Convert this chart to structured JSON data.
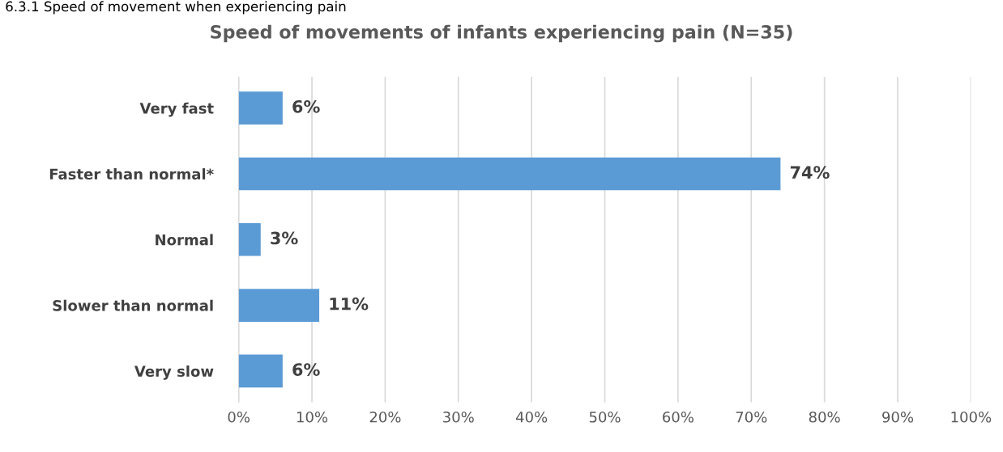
{
  "chart_data": {
    "type": "bar",
    "orientation": "horizontal",
    "title": "Speed of movements of infants experiencing pain (N=35)",
    "annotations": [
      "6.3.1 Speed of movement when experiencing pain"
    ],
    "categories": [
      "Very fast",
      "Faster than normal*",
      "Normal",
      "Slower than normal",
      "Very slow"
    ],
    "values": [
      6,
      74,
      3,
      11,
      6
    ],
    "value_labels": [
      "6%",
      "74%",
      "3%",
      "11%",
      "6%"
    ],
    "color": "#5b9bd5",
    "xlim": [
      0,
      100
    ],
    "xticks": [
      {
        "value": 0,
        "label": "0%"
      },
      {
        "value": 10,
        "label": "10%"
      },
      {
        "value": 20,
        "label": "20%"
      },
      {
        "value": 30,
        "label": "30%"
      },
      {
        "value": 40,
        "label": "40%"
      },
      {
        "value": 50,
        "label": "50%"
      },
      {
        "value": 60,
        "label": "60%"
      },
      {
        "value": 70,
        "label": "70%"
      },
      {
        "value": 80,
        "label": "80%"
      },
      {
        "value": 90,
        "label": "90%"
      },
      {
        "value": 100,
        "label": "100%"
      }
    ],
    "grid": "x"
  }
}
